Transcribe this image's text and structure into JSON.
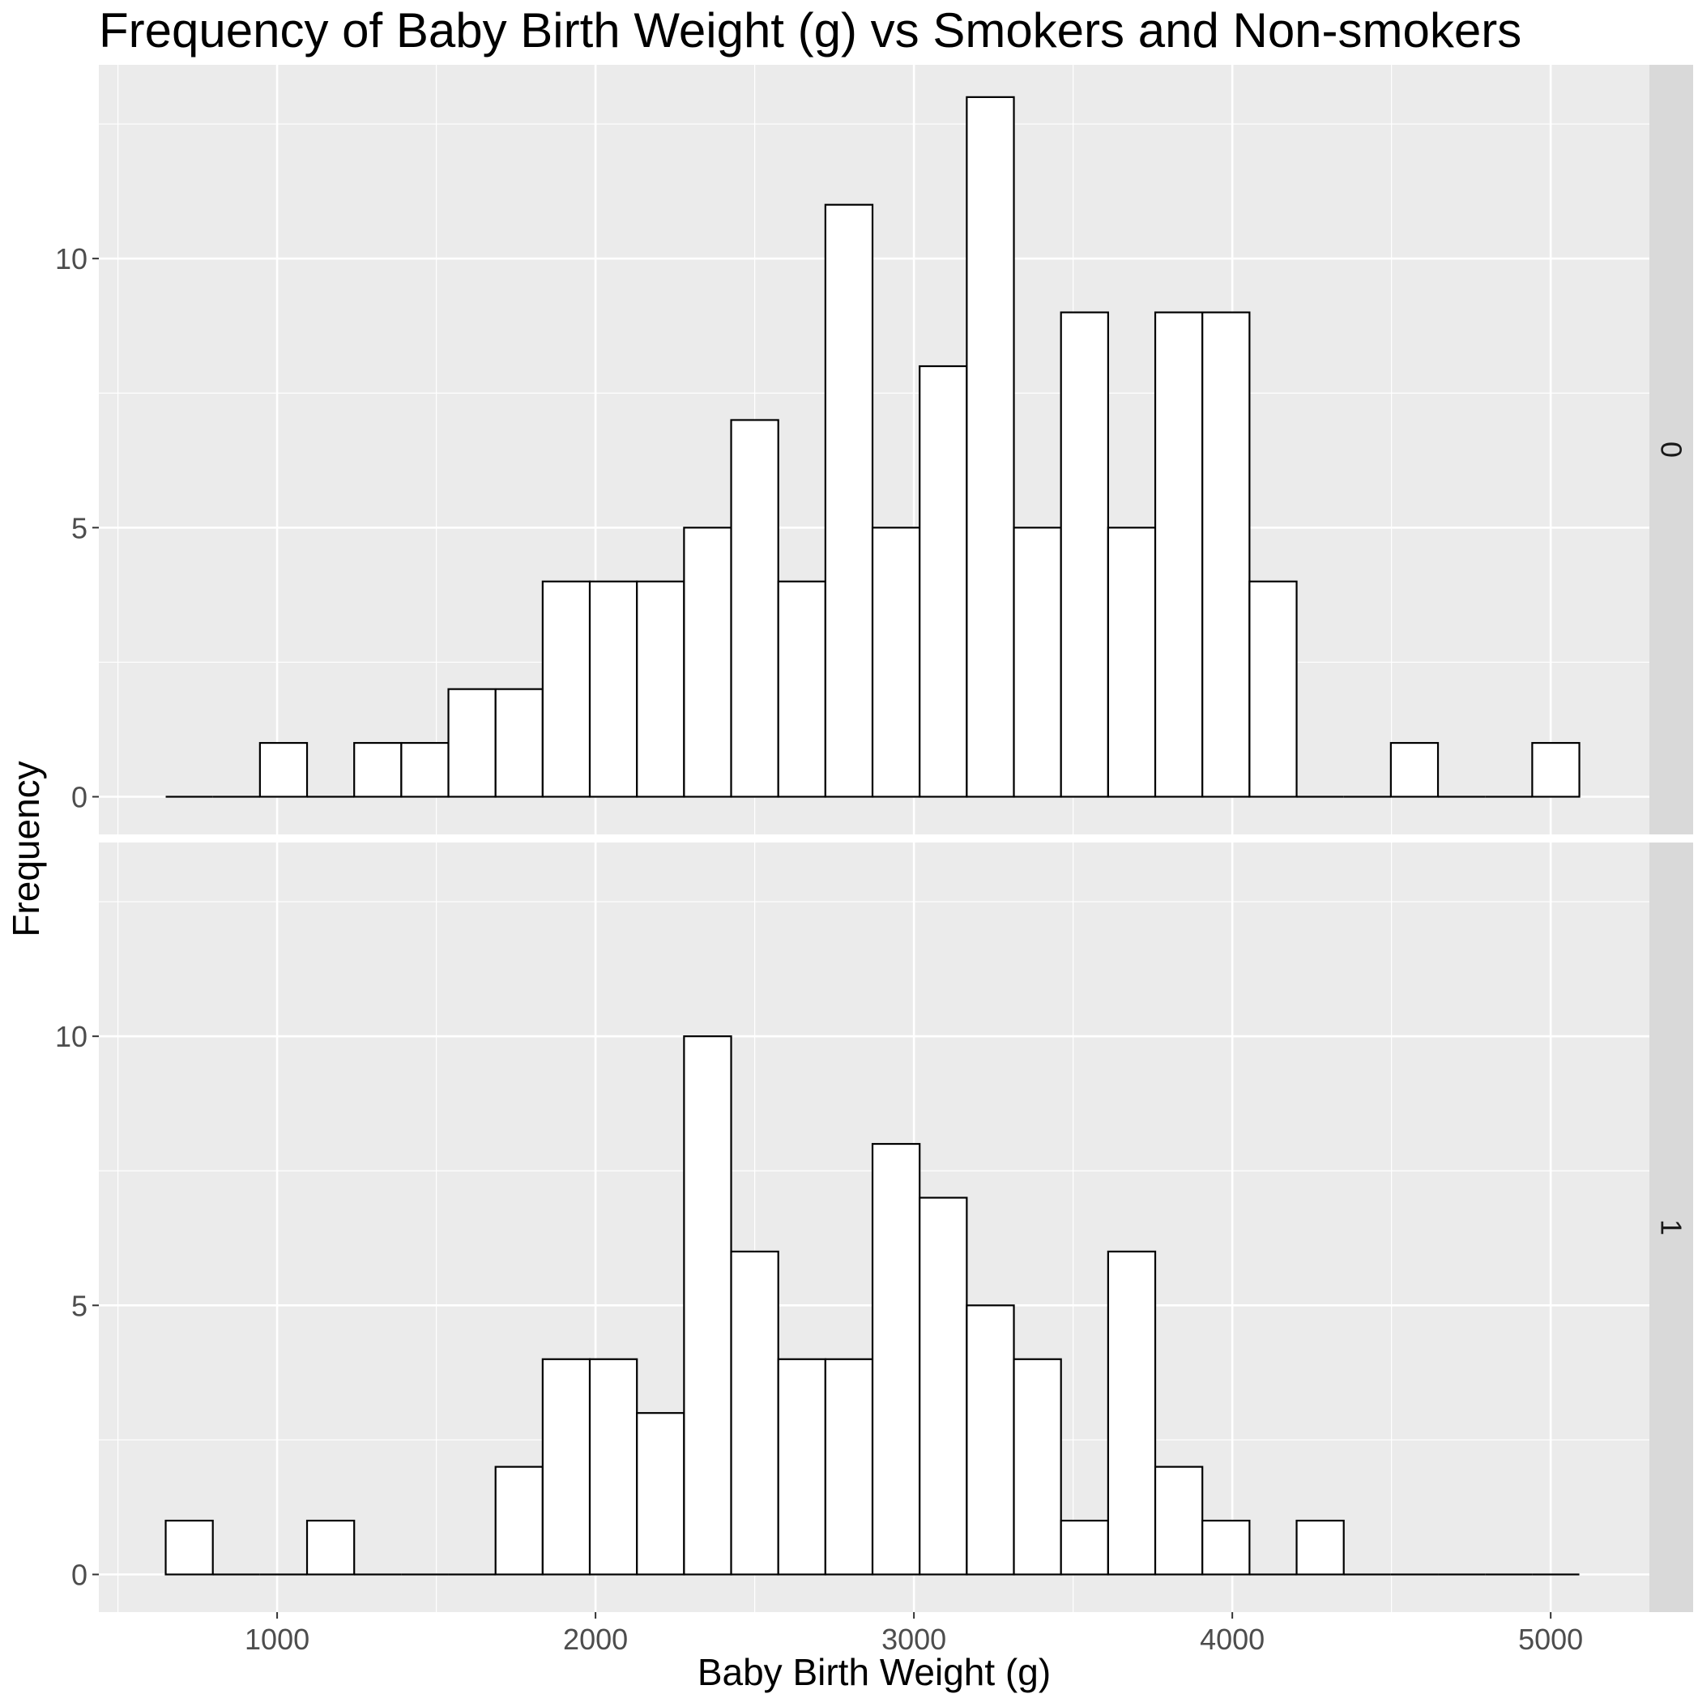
{
  "chart_data": {
    "type": "bar",
    "title": "Frequency of Baby Birth Weight (g) vs Smokers and Non-smokers",
    "xlabel": "Baby Birth Weight (g)",
    "ylabel": "Frequency",
    "xlim": [
      440,
      5310
    ],
    "ylim": [
      -0.7,
      13.6
    ],
    "x_ticks": [
      1000,
      2000,
      3000,
      4000,
      5000
    ],
    "y_ticks": [
      0,
      5,
      10
    ],
    "grid": true,
    "bins": {
      "x_min": [
        650,
        798,
        946,
        1094,
        1242,
        1390,
        1538,
        1686,
        1834,
        1982,
        2130,
        2278,
        2426,
        2574,
        2722,
        2870,
        3018,
        3166,
        3314,
        3462,
        3610,
        3758,
        3906,
        4054,
        4202,
        4350,
        4498,
        4646,
        4794,
        4942
      ],
      "width": 148
    },
    "panels": [
      {
        "strip": "0",
        "counts": [
          0,
          0,
          1,
          0,
          1,
          1,
          2,
          2,
          4,
          4,
          4,
          5,
          7,
          4,
          11,
          5,
          8,
          13,
          5,
          9,
          5,
          9,
          9,
          4,
          0,
          0,
          1,
          0,
          0,
          1
        ]
      },
      {
        "strip": "1",
        "counts": [
          1,
          0,
          0,
          1,
          0,
          0,
          0,
          2,
          4,
          4,
          3,
          10,
          6,
          4,
          4,
          8,
          7,
          5,
          4,
          1,
          6,
          2,
          1,
          0,
          1,
          0,
          0,
          0,
          0,
          0
        ]
      }
    ]
  },
  "colors": {
    "panel_background": "#ebebeb",
    "grid_major": "#ffffff",
    "strip_background": "#d9d9d9",
    "bar_fill": "#ffffff",
    "bar_stroke": "#000000"
  }
}
